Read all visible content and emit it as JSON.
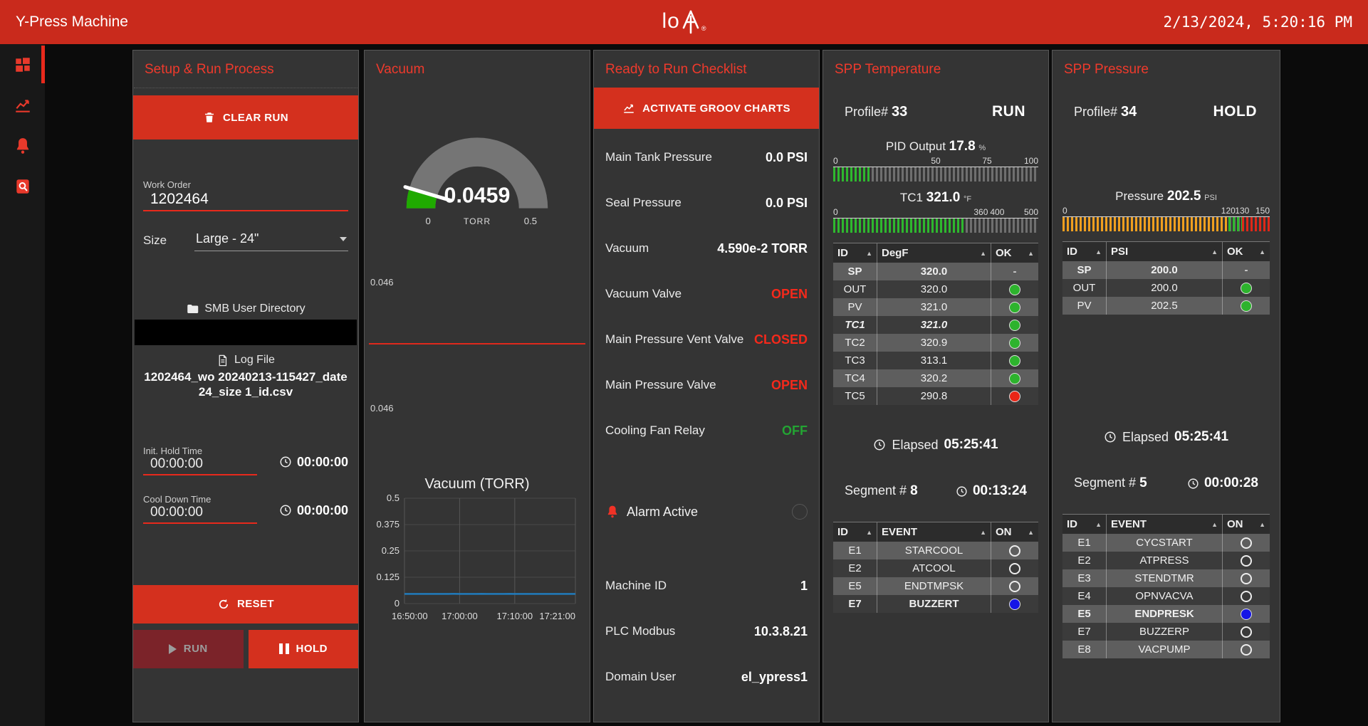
{
  "header": {
    "title": "Y-Press Machine",
    "logo_text": "lo",
    "clock": "2/13/2024, 5:20:16 PM"
  },
  "sidebar": {
    "items": [
      "dashboard",
      "trends",
      "alarms",
      "logs"
    ]
  },
  "colors": {
    "header_red": "#c92a1c",
    "button_red": "#d4301e",
    "panel_title_red": "#ef3a2c",
    "status_red": "#f5291b",
    "status_green": "#23a433",
    "led_green": "#2db32d",
    "led_red": "#ea2517",
    "led_blue": "#1515e6",
    "gauge_green": "#2eb82e",
    "gauge_orange": "#f09f1f",
    "gauge_red": "#df2818",
    "vacuum_gauge_green": "#1faa00",
    "chart_line_blue": "#1f7ec2"
  },
  "setup_panel": {
    "title": "Setup & Run Process",
    "clear_run_label": "CLEAR RUN",
    "work_order_label": "Work Order",
    "work_order_value": "1202464",
    "size_label": "Size",
    "size_value": "Large - 24\"",
    "smb_label": "SMB User Directory",
    "log_file_label": "Log File",
    "log_file_name": "1202464_wo 20240213-115427_date 24_size 1_id.csv",
    "init_hold_label": "Init. Hold Time",
    "init_hold_value": "00:00:00",
    "init_hold_timer": "00:00:00",
    "cool_down_label": "Cool Down Time",
    "cool_down_value": "00:00:00",
    "cool_down_timer": "00:00:00",
    "reset_label": "RESET",
    "run_label": "RUN",
    "hold_label": "HOLD"
  },
  "vacuum_panel": {
    "title": "Vacuum",
    "gauge": {
      "value": "0.0459",
      "unit": "TORR",
      "min": "0",
      "max": "0.5",
      "fraction": 0.092
    },
    "trend_top": "0.046",
    "trend_bottom": "0.046"
  },
  "chart_data": {
    "type": "line",
    "title": "Vacuum (TORR)",
    "xlabel": "",
    "ylabel": "",
    "x_tick_labels": [
      "16:50:00",
      "17:00:00",
      "17:10:00",
      "17:21:00"
    ],
    "x_tick_minutes": [
      0,
      10,
      20,
      31
    ],
    "x_range_minutes": [
      0,
      31
    ],
    "y_ticks": [
      0,
      0.125,
      0.25,
      0.375,
      0.5
    ],
    "ylim": [
      0,
      0.5
    ],
    "grid": true,
    "legend": "none",
    "series": [
      {
        "name": "Vacuum",
        "color": "#1f7ec2",
        "x_minutes": [
          0,
          1,
          2,
          3,
          4,
          5,
          6,
          7,
          8,
          9,
          10,
          11,
          12,
          13,
          14,
          15,
          16,
          17,
          18,
          19,
          20,
          21,
          22,
          23,
          24,
          25,
          26,
          27,
          28,
          29,
          30,
          31
        ],
        "values": [
          0.046,
          0.0461,
          0.046,
          0.0459,
          0.046,
          0.046,
          0.0461,
          0.0459,
          0.046,
          0.0462,
          0.0458,
          0.0461,
          0.046,
          0.0459,
          0.0462,
          0.0458,
          0.046,
          0.0461,
          0.0459,
          0.0462,
          0.0458,
          0.046,
          0.0461,
          0.0459,
          0.046,
          0.046,
          0.0461,
          0.0459,
          0.046,
          0.046,
          0.0459,
          0.046
        ]
      }
    ]
  },
  "checklist_panel": {
    "title": "Ready to Run Checklist",
    "activate_button": "ACTIVATE GROOV CHARTS",
    "rows": [
      {
        "label": "Main Tank Pressure",
        "value": "0.0 PSI",
        "color": "white"
      },
      {
        "label": "Seal Pressure",
        "value": "0.0 PSI",
        "color": "white"
      },
      {
        "label": "Vacuum",
        "value": "4.590e-2 TORR",
        "color": "white"
      },
      {
        "label": "Vacuum Valve",
        "value": "OPEN",
        "color": "red"
      },
      {
        "label": "Main Pressure Vent Valve",
        "value": "CLOSED",
        "color": "red"
      },
      {
        "label": "Main Pressure Valve",
        "value": "OPEN",
        "color": "red"
      },
      {
        "label": "Cooling Fan Relay",
        "value": "OFF",
        "color": "green"
      }
    ],
    "alarm_label": "Alarm Active",
    "info_rows": [
      {
        "label": "Machine ID",
        "value": "1"
      },
      {
        "label": "PLC Modbus",
        "value": "10.3.8.21"
      },
      {
        "label": "Domain User",
        "value": "el_ypress1"
      }
    ]
  },
  "temperature_panel": {
    "title": "SPP Temperature",
    "profile_label": "Profile#",
    "profile_value": "33",
    "status": "RUN",
    "pid_gauge": {
      "label": "PID Output",
      "value": "17.8",
      "unit": "%",
      "ticks": [
        {
          "label": "0",
          "pos": 0
        },
        {
          "label": "50",
          "pos": 50
        },
        {
          "label": "75",
          "pos": 75
        },
        {
          "label": "100",
          "pos": 100
        }
      ],
      "zones": [
        {
          "from": 0,
          "to": 17.8,
          "color": "#2eb82e"
        }
      ]
    },
    "tc1_gauge": {
      "label": "TC1",
      "value": "321.0",
      "unit": "°F",
      "ticks": [
        {
          "label": "0",
          "pos": 0
        },
        {
          "label": "360",
          "pos": 72
        },
        {
          "label": "400",
          "pos": 80
        },
        {
          "label": "500",
          "pos": 100
        }
      ],
      "zones": [
        {
          "from": 0,
          "to": 64.2,
          "color": "#2eb82e"
        }
      ]
    },
    "table": {
      "headers": [
        "ID",
        "DegF",
        "OK"
      ],
      "rows": [
        [
          "SP",
          "320.0",
          "-",
          "emph"
        ],
        [
          "OUT",
          "320.0",
          "green",
          ""
        ],
        [
          "PV",
          "321.0",
          "green",
          ""
        ],
        [
          "TC1",
          "321.0",
          "green",
          "emph-italic"
        ],
        [
          "TC2",
          "320.9",
          "green",
          ""
        ],
        [
          "TC3",
          "313.1",
          "green",
          ""
        ],
        [
          "TC4",
          "320.2",
          "green",
          ""
        ],
        [
          "TC5",
          "290.8",
          "red",
          ""
        ]
      ]
    },
    "elapsed_label": "Elapsed",
    "elapsed_value": "05:25:41",
    "segment_label": "Segment #",
    "segment_value": "8",
    "segment_time": "00:13:24",
    "events": {
      "headers": [
        "ID",
        "EVENT",
        "ON"
      ],
      "rows": [
        [
          "E1",
          "STARCOOL",
          "off",
          ""
        ],
        [
          "E2",
          "ATCOOL",
          "off",
          ""
        ],
        [
          "E5",
          "ENDTMPSK",
          "off",
          ""
        ],
        [
          "E7",
          "BUZZERT",
          "blue",
          "emph"
        ]
      ]
    }
  },
  "pressure_panel": {
    "title": "SPP Pressure",
    "profile_label": "Profile#",
    "profile_value": "34",
    "status": "HOLD",
    "pressure_gauge": {
      "label": "Pressure",
      "value": "202.5",
      "unit": "PSI",
      "ticks": [
        {
          "label": "0",
          "pos": 0
        },
        {
          "label": "120",
          "pos": 80
        },
        {
          "label": "130",
          "pos": 86.7
        },
        {
          "label": "150",
          "pos": 100
        }
      ],
      "zones": [
        {
          "from": 0,
          "to": 80,
          "color": "#f09f1f"
        },
        {
          "from": 80,
          "to": 86.7,
          "color": "#2eb82e"
        },
        {
          "from": 86.7,
          "to": 100,
          "color": "#df2818"
        }
      ]
    },
    "table": {
      "headers": [
        "ID",
        "PSI",
        "OK"
      ],
      "rows": [
        [
          "SP",
          "200.0",
          "-",
          "emph"
        ],
        [
          "OUT",
          "200.0",
          "green",
          ""
        ],
        [
          "PV",
          "202.5",
          "green",
          ""
        ]
      ]
    },
    "elapsed_label": "Elapsed",
    "elapsed_value": "05:25:41",
    "segment_label": "Segment #",
    "segment_value": "5",
    "segment_time": "00:00:28",
    "events": {
      "headers": [
        "ID",
        "EVENT",
        "ON"
      ],
      "rows": [
        [
          "E1",
          "CYCSTART",
          "off",
          ""
        ],
        [
          "E2",
          "ATPRESS",
          "off",
          ""
        ],
        [
          "E3",
          "STENDTMR",
          "off",
          ""
        ],
        [
          "E4",
          "OPNVACVA",
          "off",
          ""
        ],
        [
          "E5",
          "ENDPRESK",
          "blue",
          "emph"
        ],
        [
          "E7",
          "BUZZERP",
          "off",
          ""
        ],
        [
          "E8",
          "VACPUMP",
          "off",
          ""
        ]
      ]
    }
  }
}
